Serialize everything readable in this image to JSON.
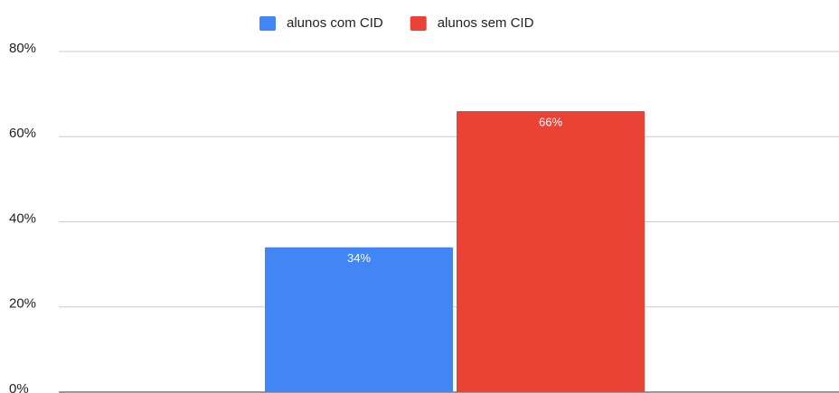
{
  "chart_data": {
    "type": "bar",
    "categories": [
      null
    ],
    "series": [
      {
        "name": "alunos com CID",
        "color": "#4285f4",
        "values": [
          34
        ],
        "value_labels": [
          "34%"
        ]
      },
      {
        "name": "alunos sem CID",
        "color": "#ea4335",
        "values": [
          66
        ],
        "value_labels": [
          "66%"
        ]
      }
    ],
    "ylim": [
      0,
      80
    ],
    "yticks": [
      {
        "value": 0,
        "label": "0%"
      },
      {
        "value": 20,
        "label": "20%"
      },
      {
        "value": 40,
        "label": "40%"
      },
      {
        "value": 60,
        "label": "60%"
      },
      {
        "value": 80,
        "label": "80%"
      }
    ],
    "grid": true,
    "legend": "top"
  }
}
